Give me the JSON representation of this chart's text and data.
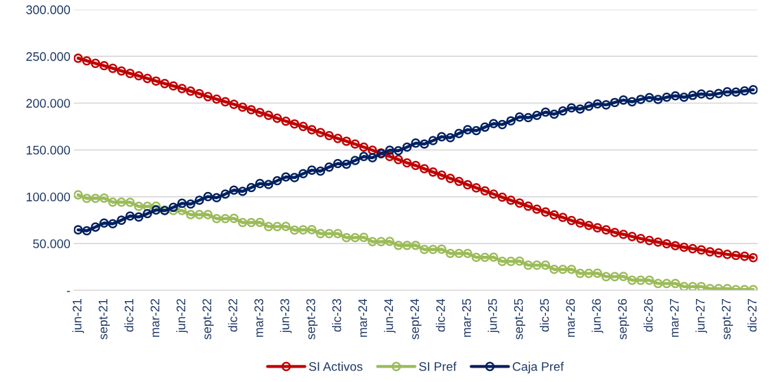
{
  "chart_data": {
    "type": "line",
    "categories": [
      "jun-21",
      null,
      null,
      "sept-21",
      null,
      null,
      "dic-21",
      null,
      null,
      "mar-22",
      null,
      null,
      "jun-22",
      null,
      null,
      "sept-22",
      null,
      null,
      "dic-22",
      null,
      null,
      "mar-23",
      null,
      null,
      "jun-23",
      null,
      null,
      "sept-23",
      null,
      null,
      "dic-23",
      null,
      null,
      "mar-24",
      null,
      null,
      "jun-24",
      null,
      null,
      "sept-24",
      null,
      null,
      "dic-24",
      null,
      null,
      "mar-25",
      null,
      null,
      "jun-25",
      null,
      null,
      "sept-25",
      null,
      null,
      "dic-25",
      null,
      null,
      "mar-26",
      null,
      null,
      "jun-26",
      null,
      null,
      "sept-26",
      null,
      null,
      "dic-26",
      null,
      null,
      "mar-27",
      null,
      null,
      "jun-27",
      null,
      null,
      "sept-27",
      null,
      null,
      "dic-27"
    ],
    "series": [
      {
        "name": "SI Activos",
        "color": "#c00000",
        "values": [
          248000,
          245200,
          242500,
          240000,
          237200,
          234400,
          231700,
          229200,
          226400,
          223600,
          220900,
          218400,
          215600,
          212800,
          210100,
          207000,
          204300,
          201500,
          198700,
          195700,
          193000,
          190000,
          187000,
          183900,
          180700,
          177800,
          175100,
          171600,
          168600,
          165300,
          162300,
          159300,
          156300,
          153000,
          149700,
          146700,
          143000,
          139700,
          136200,
          133400,
          129900,
          126400,
          123100,
          119600,
          116400,
          112800,
          109500,
          106300,
          102800,
          99500,
          96200,
          93200,
          89900,
          86700,
          83700,
          80700,
          77900,
          74600,
          71900,
          69300,
          66800,
          64600,
          61800,
          59800,
          57500,
          55300,
          53300,
          51500,
          49700,
          47700,
          46000,
          44500,
          43200,
          41200,
          39900,
          38400,
          37200,
          36400,
          34900
        ]
      },
      {
        "name": "SI Pref",
        "color": "#9bbb59",
        "values": [
          102000,
          98200,
          98200,
          98500,
          94200,
          94200,
          94000,
          89700,
          89700,
          89900,
          85700,
          85200,
          85200,
          80900,
          80900,
          80900,
          76600,
          76600,
          76900,
          72400,
          72400,
          72600,
          68100,
          68100,
          68300,
          64400,
          64600,
          64800,
          60600,
          60600,
          60600,
          56300,
          56300,
          56600,
          52000,
          52000,
          52300,
          48000,
          48000,
          48000,
          43700,
          43700,
          43900,
          39400,
          39400,
          39400,
          35200,
          35200,
          35400,
          30900,
          30900,
          31200,
          26900,
          26900,
          26900,
          22400,
          22400,
          22400,
          18100,
          18100,
          18300,
          14600,
          14600,
          14800,
          10800,
          10800,
          10800,
          7300,
          7300,
          7300,
          4000,
          4000,
          4000,
          1800,
          1800,
          1800,
          800,
          800,
          800
        ]
      },
      {
        "name": "Caja Pref",
        "color": "#002060",
        "values": [
          64600,
          63600,
          67600,
          71900,
          71100,
          74900,
          79400,
          78400,
          81900,
          85900,
          85200,
          88700,
          93000,
          92200,
          96200,
          100200,
          99000,
          102800,
          107000,
          105800,
          109800,
          114100,
          113100,
          117100,
          121100,
          120500,
          124600,
          128400,
          127400,
          131700,
          135400,
          134700,
          138700,
          143000,
          141700,
          146000,
          149700,
          149200,
          153000,
          157300,
          156300,
          160000,
          164100,
          163100,
          167600,
          171600,
          170600,
          174400,
          178100,
          177100,
          181100,
          185200,
          184500,
          186900,
          190400,
          188200,
          191700,
          195000,
          193700,
          196700,
          199200,
          198200,
          200700,
          203300,
          201500,
          204000,
          206000,
          204000,
          206300,
          207800,
          206300,
          208300,
          209800,
          208800,
          210300,
          212100,
          211800,
          213100,
          214300
        ]
      }
    ],
    "ylim": [
      0,
      300000
    ],
    "yticks": [
      {
        "value": 0,
        "label": "-"
      },
      {
        "value": 50000,
        "label": "50.000"
      },
      {
        "value": 100000,
        "label": "100.000"
      },
      {
        "value": 150000,
        "label": "150.000"
      },
      {
        "value": 200000,
        "label": "200.000"
      },
      {
        "value": 250000,
        "label": "250.000"
      },
      {
        "value": 300000,
        "label": "300.000"
      }
    ],
    "grid": "y",
    "legend": "bottom",
    "marker": "circle",
    "line_style": "solid"
  }
}
